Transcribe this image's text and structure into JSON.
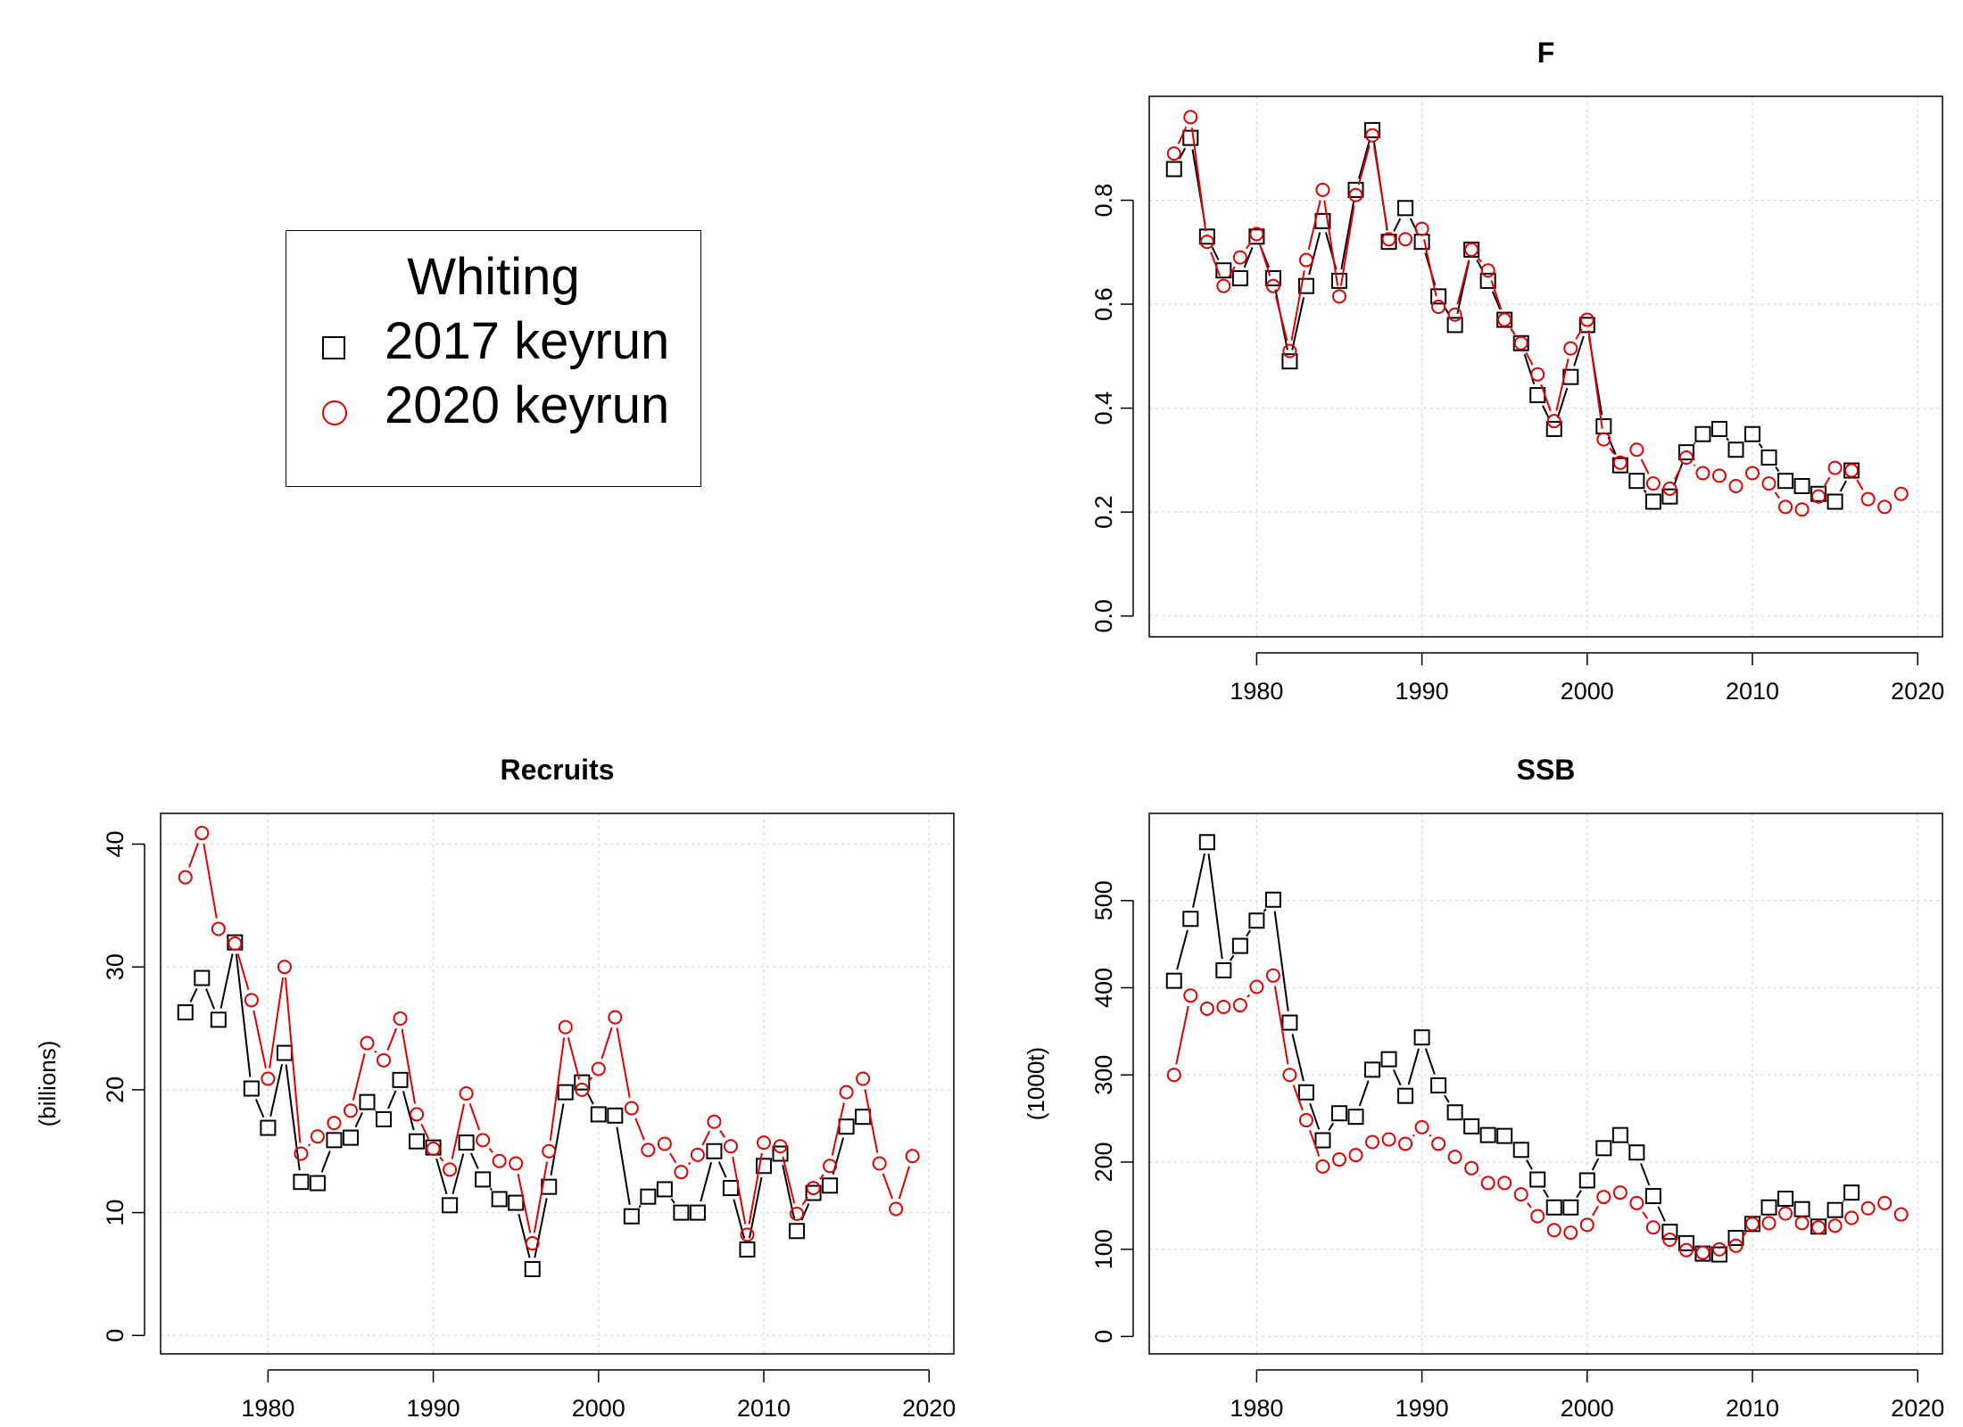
{
  "legend": {
    "title": "Whiting",
    "entries": [
      {
        "label": "2017 keyrun",
        "marker": "square",
        "color": "#000000"
      },
      {
        "label": "2020 keyrun",
        "marker": "circle",
        "color": "#e00000"
      }
    ]
  },
  "chart_data": [
    {
      "type": "line",
      "title": "F",
      "ylabel": "",
      "xlim": [
        1973.5,
        2021.5
      ],
      "ylim": [
        -0.04,
        1.0
      ],
      "xticks": [
        1980,
        1990,
        2000,
        2010,
        2020
      ],
      "yticks": [
        0.0,
        0.2,
        0.4,
        0.6,
        0.8
      ],
      "ytick_labels": [
        "0.0",
        "0.2",
        "0.4",
        "0.6",
        "0.8"
      ],
      "grid": true,
      "series": [
        {
          "marker": "square",
          "color": "#000000",
          "x_start": 1975,
          "values": [
            0.86,
            0.92,
            0.73,
            0.665,
            0.65,
            0.73,
            0.65,
            0.49,
            0.635,
            0.76,
            0.645,
            0.82,
            0.935,
            0.72,
            0.785,
            0.72,
            0.615,
            0.56,
            0.705,
            0.645,
            0.57,
            0.525,
            0.425,
            0.36,
            0.46,
            0.56,
            0.365,
            0.29,
            0.26,
            0.22,
            0.23,
            0.315,
            0.35,
            0.36,
            0.32,
            0.35,
            0.305,
            0.26,
            0.25,
            0.235,
            0.22,
            0.28
          ]
        },
        {
          "marker": "circle",
          "color": "#e00000",
          "x_start": 1975,
          "values": [
            0.89,
            0.96,
            0.72,
            0.635,
            0.69,
            0.735,
            0.635,
            0.51,
            0.685,
            0.82,
            0.615,
            0.81,
            0.925,
            0.725,
            0.725,
            0.745,
            0.595,
            0.58,
            0.705,
            0.665,
            0.57,
            0.525,
            0.465,
            0.375,
            0.515,
            0.57,
            0.34,
            0.295,
            0.32,
            0.255,
            0.245,
            0.305,
            0.275,
            0.27,
            0.25,
            0.275,
            0.255,
            0.21,
            0.205,
            0.23,
            0.285,
            0.28,
            0.225,
            0.21,
            0.235
          ]
        }
      ]
    },
    {
      "type": "line",
      "title": "Recruits",
      "ylabel": "(billions)",
      "xlim": [
        1973.5,
        2021.5
      ],
      "ylim": [
        -1.5,
        42.5
      ],
      "xticks": [
        1980,
        1990,
        2000,
        2010,
        2020
      ],
      "yticks": [
        0,
        10,
        20,
        30,
        40
      ],
      "ytick_labels": [
        "0",
        "10",
        "20",
        "30",
        "40"
      ],
      "grid": true,
      "series": [
        {
          "marker": "square",
          "color": "#000000",
          "x_start": 1975,
          "values": [
            26.3,
            29.1,
            25.7,
            32.0,
            20.1,
            16.9,
            23.0,
            12.5,
            12.4,
            15.9,
            16.1,
            19.0,
            17.6,
            20.8,
            15.8,
            15.3,
            10.6,
            15.7,
            12.7,
            11.1,
            10.8,
            5.4,
            12.1,
            19.8,
            20.6,
            18.0,
            17.9,
            9.7,
            11.3,
            11.9,
            10.0,
            10.0,
            15.0,
            12.0,
            7.0,
            13.8,
            14.8,
            8.5,
            11.6,
            12.2,
            17.0,
            17.8
          ]
        },
        {
          "marker": "circle",
          "color": "#e00000",
          "x_start": 1975,
          "values": [
            37.3,
            40.9,
            33.1,
            31.9,
            27.3,
            20.9,
            30.0,
            14.8,
            16.2,
            17.3,
            18.3,
            23.8,
            22.4,
            25.8,
            18.0,
            15.2,
            13.5,
            19.7,
            15.9,
            14.2,
            14.0,
            7.5,
            15.0,
            25.1,
            20.0,
            21.7,
            25.9,
            18.5,
            15.1,
            15.6,
            13.3,
            14.7,
            17.4,
            15.4,
            8.2,
            15.7,
            15.4,
            9.9,
            12.0,
            13.8,
            19.8,
            20.9,
            14.0,
            10.3,
            14.6
          ]
        }
      ]
    },
    {
      "type": "line",
      "title": "SSB",
      "ylabel": "(1000t)",
      "xlim": [
        1973.5,
        2021.5
      ],
      "ylim": [
        -20,
        600
      ],
      "xticks": [
        1980,
        1990,
        2000,
        2010,
        2020
      ],
      "yticks": [
        0,
        100,
        200,
        300,
        400,
        500
      ],
      "ytick_labels": [
        "0",
        "100",
        "200",
        "300",
        "400",
        "500"
      ],
      "grid": true,
      "series": [
        {
          "marker": "square",
          "color": "#000000",
          "x_start": 1975,
          "values": [
            408,
            479,
            567,
            420,
            448,
            477,
            501,
            360,
            280,
            225,
            256,
            252,
            306,
            318,
            276,
            343,
            288,
            257,
            241,
            231,
            230,
            214,
            180,
            148,
            148,
            179,
            216,
            231,
            211,
            161,
            120,
            107,
            95,
            94,
            113,
            129,
            148,
            158,
            146,
            126,
            145,
            165
          ]
        },
        {
          "marker": "circle",
          "color": "#e00000",
          "x_start": 1975,
          "values": [
            300,
            391,
            376,
            378,
            380,
            401,
            414,
            300,
            248,
            195,
            203,
            208,
            223,
            226,
            221,
            240,
            221,
            206,
            193,
            176,
            176,
            163,
            138,
            122,
            119,
            128,
            160,
            165,
            153,
            125,
            111,
            99,
            96,
            100,
            104,
            129,
            130,
            141,
            130,
            125,
            127,
            136,
            147,
            153,
            140
          ]
        }
      ]
    }
  ]
}
